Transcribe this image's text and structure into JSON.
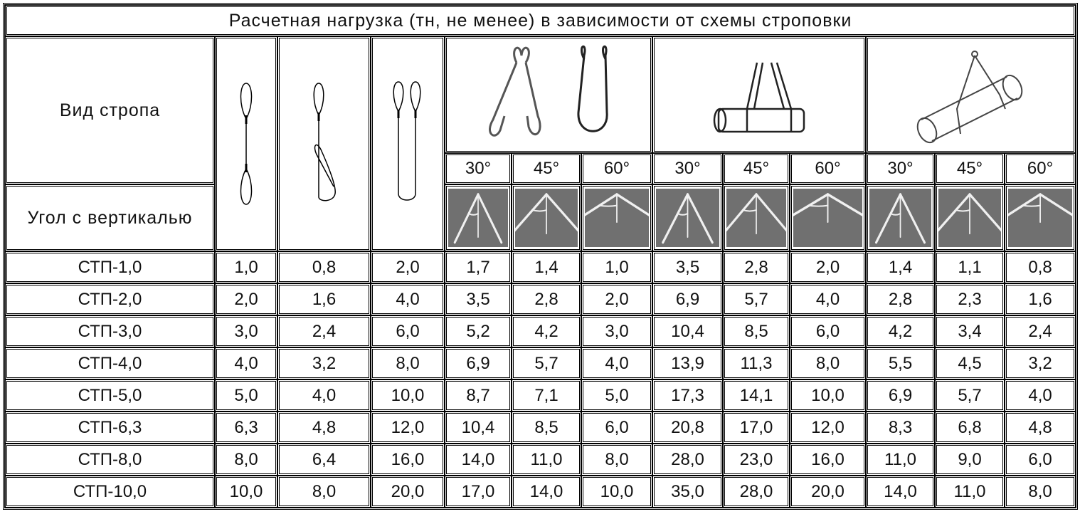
{
  "title": "Расчетная нагрузка (тн, не менее) в зависимости от схемы строповки",
  "sling_type_label": "Вид стропа",
  "angle_label": "Угол с вертикалью",
  "angles": [
    "30°",
    "45°",
    "60°",
    "30°",
    "45°",
    "60°",
    "30°",
    "45°",
    "60°"
  ],
  "angle_values": [
    30,
    45,
    60,
    30,
    45,
    60,
    30,
    45,
    60
  ],
  "angle_icon_colors": {
    "background": "#707070",
    "line": "#f0f0f0"
  },
  "sling_images": [
    "single-sling-loops-icon",
    "choker-sling-icon",
    "double-loop-sling-icon",
    "two-leg-sling-icon",
    "basket-sling-cylinder-icon",
    "choke-hitch-cylinder-icon"
  ],
  "rows": [
    {
      "name": "СТП-1,0",
      "values": [
        "1,0",
        "0,8",
        "2,0",
        "1,7",
        "1,4",
        "1,0",
        "3,5",
        "2,8",
        "2,0",
        "1,4",
        "1,1",
        "0,8"
      ]
    },
    {
      "name": "СТП-2,0",
      "values": [
        "2,0",
        "1,6",
        "4,0",
        "3,5",
        "2,8",
        "2,0",
        "6,9",
        "5,7",
        "4,0",
        "2,8",
        "2,3",
        "1,6"
      ]
    },
    {
      "name": "СТП-3,0",
      "values": [
        "3,0",
        "2,4",
        "6,0",
        "5,2",
        "4,2",
        "3,0",
        "10,4",
        "8,5",
        "6,0",
        "4,2",
        "3,4",
        "2,4"
      ]
    },
    {
      "name": "СТП-4,0",
      "values": [
        "4,0",
        "3,2",
        "8,0",
        "6,9",
        "5,7",
        "4,0",
        "13,9",
        "11,3",
        "8,0",
        "5,5",
        "4,5",
        "3,2"
      ]
    },
    {
      "name": "СТП-5,0",
      "values": [
        "5,0",
        "4,0",
        "10,0",
        "8,7",
        "7,1",
        "5,0",
        "17,3",
        "14,1",
        "10,0",
        "6,9",
        "5,7",
        "4,0"
      ]
    },
    {
      "name": "СТП-6,3",
      "values": [
        "6,3",
        "4,8",
        "12,0",
        "10,4",
        "8,5",
        "6,0",
        "20,8",
        "17,0",
        "12,0",
        "8,3",
        "6,8",
        "4,8"
      ]
    },
    {
      "name": "СТП-8,0",
      "values": [
        "8,0",
        "6,4",
        "16,0",
        "14,0",
        "11,0",
        "8,0",
        "28,0",
        "23,0",
        "16,0",
        "11,0",
        "9,0",
        "6,0"
      ]
    },
    {
      "name": "СТП-10,0",
      "values": [
        "10,0",
        "8,0",
        "20,0",
        "17,0",
        "14,0",
        "10,0",
        "35,0",
        "28,0",
        "20,0",
        "14,0",
        "11,0",
        "8,0"
      ]
    }
  ]
}
